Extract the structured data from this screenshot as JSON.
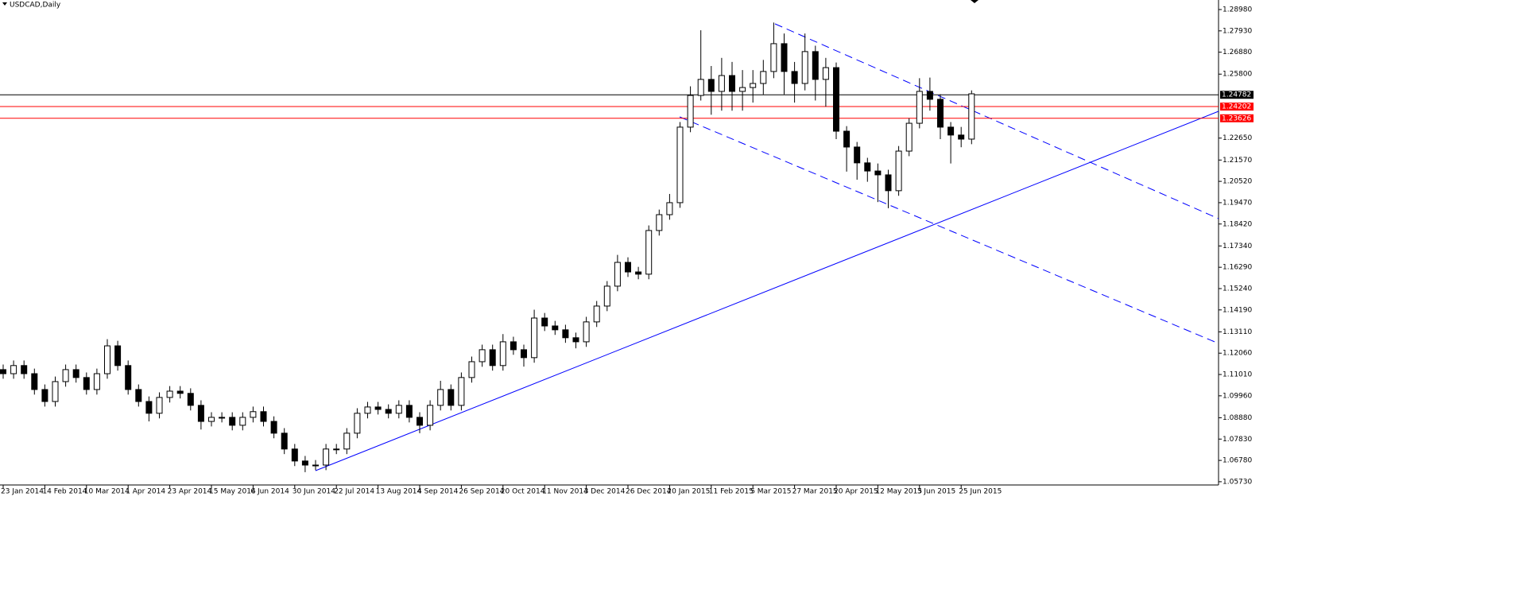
{
  "chart_data": {
    "type": "candlestick",
    "title": "USDCAD,Daily",
    "categories": [
      "23 Jan 2014",
      null,
      null,
      null,
      "14 Feb 2014",
      null,
      null,
      null,
      "10 Mar 2014",
      null,
      null,
      null,
      "1 Apr 2014",
      null,
      null,
      null,
      "23 Apr 2014",
      null,
      null,
      null,
      "15 May 2014",
      null,
      null,
      null,
      "6 Jun 2014",
      null,
      null,
      null,
      "30 Jun 2014",
      null,
      null,
      null,
      "22 Jul 2014",
      null,
      null,
      null,
      "13 Aug 2014",
      null,
      null,
      null,
      "4 Sep 2014",
      null,
      null,
      null,
      "26 Sep 2014",
      null,
      null,
      null,
      "20 Oct 2014",
      null,
      null,
      null,
      "11 Nov 2014",
      null,
      null,
      null,
      "3 Dec 2014",
      null,
      null,
      null,
      "26 Dec 2014",
      null,
      null,
      null,
      "20 Jan 2015",
      null,
      null,
      null,
      "11 Feb 2015",
      null,
      null,
      null,
      "5 Mar 2015",
      null,
      null,
      null,
      "27 Mar 2015",
      null,
      null,
      null,
      "20 Apr 2015",
      null,
      null,
      null,
      "12 May 2015",
      null,
      null,
      null,
      "3 Jun 2015",
      null,
      null,
      null,
      "25 Jun 2015",
      null
    ],
    "open": [
      1.1125,
      1.1105,
      1.1145,
      1.1105,
      1.1027,
      1.0968,
      1.1066,
      1.1125,
      1.1086,
      1.1027,
      1.1105,
      1.1242,
      1.1145,
      1.1027,
      1.0968,
      1.091,
      1.0988,
      1.1019,
      1.1008,
      1.0949,
      1.087,
      1.089,
      1.089,
      1.0851,
      1.089,
      1.0918,
      1.087,
      1.0812,
      1.0734,
      1.0675,
      1.0655,
      1.0655,
      1.0734,
      1.0734,
      1.0812,
      1.091,
      1.0941,
      1.0929,
      1.091,
      1.0949,
      1.089,
      1.0851,
      1.0949,
      1.1027,
      1.0949,
      1.1086,
      1.1164,
      1.1223,
      1.1145,
      1.1262,
      1.1223,
      1.1184,
      1.1379,
      1.134,
      1.1321,
      1.1282,
      1.1262,
      1.136,
      1.1438,
      1.1536,
      1.1653,
      1.1606,
      1.1595,
      1.181,
      1.1888,
      1.1947,
      1.2319,
      1.2475,
      1.2554,
      1.2495,
      1.2573,
      1.2495,
      1.2514,
      1.2534,
      1.2593,
      1.273,
      1.2593,
      1.2534,
      1.2691,
      1.2554,
      1.2612,
      1.2299,
      1.2221,
      1.2143,
      1.2103,
      1.2084,
      1.2006,
      1.2201,
      1.2338,
      1.2495,
      1.2456,
      1.2319,
      1.228,
      1.226
    ],
    "high": [
      1.115,
      1.117,
      1.117,
      1.113,
      1.1052,
      1.1091,
      1.115,
      1.115,
      1.1111,
      1.113,
      1.1275,
      1.1267,
      1.117,
      1.1052,
      1.0993,
      1.1013,
      1.1044,
      1.1044,
      1.1033,
      1.0974,
      1.0915,
      1.0915,
      1.0915,
      1.0915,
      1.0943,
      1.0943,
      1.0895,
      1.0837,
      1.0759,
      1.07,
      1.068,
      1.0759,
      1.0759,
      1.0837,
      1.0935,
      1.0966,
      1.0966,
      1.0954,
      1.0974,
      1.0974,
      1.0915,
      1.0974,
      1.107,
      1.1052,
      1.1111,
      1.1189,
      1.1248,
      1.1248,
      1.13,
      1.1287,
      1.1248,
      1.142,
      1.1404,
      1.1365,
      1.1346,
      1.1307,
      1.1385,
      1.1463,
      1.1561,
      1.169,
      1.1678,
      1.1631,
      1.1835,
      1.1913,
      1.199,
      1.2344,
      1.252,
      1.2796,
      1.262,
      1.266,
      1.264,
      1.26,
      1.26,
      1.265,
      1.2834,
      1.278,
      1.264,
      1.278,
      1.272,
      1.266,
      1.2637,
      1.2324,
      1.2246,
      1.2168,
      1.214,
      1.2109,
      1.2226,
      1.2363,
      1.256,
      1.2563,
      1.2481,
      1.2344,
      1.232,
      1.25
    ],
    "low": [
      1.108,
      1.108,
      1.108,
      1.1002,
      1.0943,
      1.0943,
      1.1041,
      1.1061,
      1.1002,
      1.1002,
      1.108,
      1.112,
      1.1002,
      1.0943,
      1.087,
      1.0885,
      1.0963,
      1.0983,
      1.0924,
      1.083,
      1.0845,
      1.0865,
      1.0826,
      1.0826,
      1.0865,
      1.0845,
      1.0787,
      1.0709,
      1.065,
      1.062,
      1.063,
      1.063,
      1.0709,
      1.0709,
      1.0787,
      1.0885,
      1.0904,
      1.0885,
      1.0885,
      1.0865,
      1.0812,
      1.0826,
      1.0924,
      1.0924,
      1.0924,
      1.1061,
      1.1139,
      1.112,
      1.112,
      1.1198,
      1.114,
      1.1159,
      1.1315,
      1.1296,
      1.1257,
      1.123,
      1.1237,
      1.1335,
      1.1413,
      1.1511,
      1.1581,
      1.157,
      1.157,
      1.1785,
      1.1863,
      1.1922,
      1.2294,
      1.245,
      1.238,
      1.24,
      1.24,
      1.24,
      1.244,
      1.248,
      1.256,
      1.248,
      1.244,
      1.25,
      1.245,
      1.242,
      1.226,
      1.21,
      1.206,
      1.205,
      1.195,
      1.192,
      1.1981,
      1.2176,
      1.2313,
      1.24,
      1.226,
      1.214,
      1.222,
      1.2235
    ],
    "close": [
      1.1105,
      1.1145,
      1.1105,
      1.1027,
      1.0968,
      1.1066,
      1.1125,
      1.1086,
      1.1027,
      1.1105,
      1.1242,
      1.1145,
      1.1027,
      1.0968,
      1.091,
      1.0988,
      1.1019,
      1.1008,
      1.0949,
      1.087,
      1.089,
      1.089,
      1.0851,
      1.089,
      1.0918,
      1.087,
      1.0812,
      1.0734,
      1.0675,
      1.0655,
      1.0655,
      1.0734,
      1.0734,
      1.0812,
      1.091,
      1.0941,
      1.0929,
      1.091,
      1.0949,
      1.089,
      1.0851,
      1.0949,
      1.1027,
      1.0949,
      1.1086,
      1.1164,
      1.1223,
      1.1145,
      1.1262,
      1.1223,
      1.1184,
      1.1379,
      1.134,
      1.1321,
      1.1282,
      1.1262,
      1.136,
      1.1438,
      1.1536,
      1.1653,
      1.1606,
      1.1595,
      1.181,
      1.1888,
      1.1947,
      1.2319,
      1.2475,
      1.2554,
      1.2495,
      1.2573,
      1.2495,
      1.2514,
      1.2534,
      1.2593,
      1.273,
      1.2593,
      1.2534,
      1.2691,
      1.2554,
      1.2612,
      1.2299,
      1.2221,
      1.2143,
      1.2103,
      1.2084,
      1.2006,
      1.2201,
      1.2338,
      1.2495,
      1.2456,
      1.2319,
      1.228,
      1.226,
      1.2483
    ],
    "up_color": "#ffffff",
    "down_color": "#000000",
    "ylim": [
      1.0557,
      1.2945
    ],
    "yticks": [
      {
        "value": 1.2898,
        "label": "1.28980"
      },
      {
        "value": 1.2793,
        "label": "1.27930"
      },
      {
        "value": 1.2688,
        "label": "1.26880"
      },
      {
        "value": 1.258,
        "label": "1.25800"
      },
      {
        "value": 1.2265,
        "label": "1.22650"
      },
      {
        "value": 1.2157,
        "label": "1.21570"
      },
      {
        "value": 1.2052,
        "label": "1.20520"
      },
      {
        "value": 1.1947,
        "label": "1.19470"
      },
      {
        "value": 1.1842,
        "label": "1.18420"
      },
      {
        "value": 1.1734,
        "label": "1.17340"
      },
      {
        "value": 1.1629,
        "label": "1.16290"
      },
      {
        "value": 1.1524,
        "label": "1.15240"
      },
      {
        "value": 1.1419,
        "label": "1.14190"
      },
      {
        "value": 1.1311,
        "label": "1.13110"
      },
      {
        "value": 1.1206,
        "label": "1.12060"
      },
      {
        "value": 1.1101,
        "label": "1.11010"
      },
      {
        "value": 1.0996,
        "label": "1.09960"
      },
      {
        "value": 1.0888,
        "label": "1.08880"
      },
      {
        "value": 1.0783,
        "label": "1.07830"
      },
      {
        "value": 1.0678,
        "label": "1.06780"
      },
      {
        "value": 1.0573,
        "label": "1.05730"
      }
    ],
    "price_lines": [
      {
        "value": 1.24782,
        "color": "#000000"
      },
      {
        "value": 1.24202,
        "color": "#ff0000"
      },
      {
        "value": 1.23626,
        "color": "#ff0000"
      }
    ]
  }
}
